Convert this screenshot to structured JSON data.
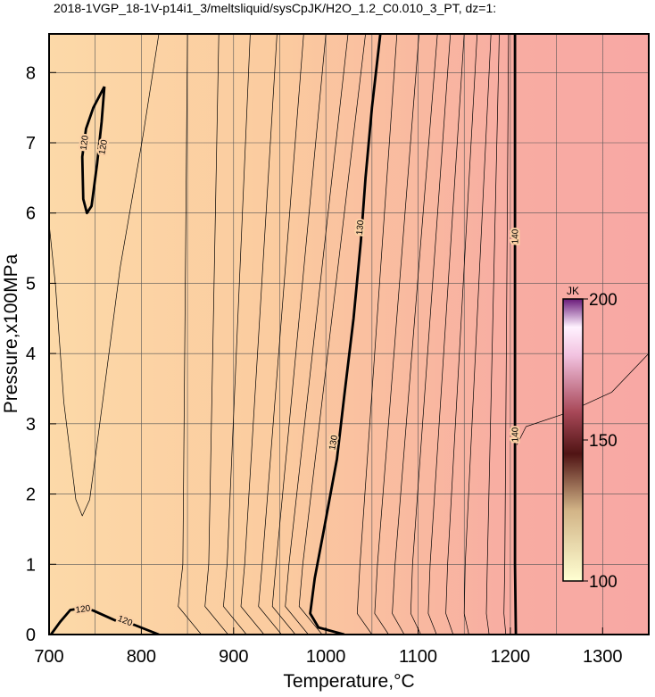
{
  "chart_data": {
    "type": "contour",
    "title": "2018-1VGP_18-1V-p14i1_3/meltsliquid/sysCpJK/H2O_1.2_C0.010_3_PT, dz=1:",
    "x_label": "Temperature,°C",
    "y_label": "Pressure,x100MPa",
    "xlim": [
      700,
      1350
    ],
    "ylim": [
      0,
      8.55
    ],
    "xticks": [
      700,
      800,
      900,
      1000,
      1100,
      1200,
      1300
    ],
    "xminorticks": [
      750,
      850,
      950,
      1050,
      1150,
      1250
    ],
    "yticks": [
      0,
      1,
      2,
      3,
      4,
      5,
      6,
      7,
      8
    ],
    "grid": true,
    "contour_color": "#000000",
    "field": {
      "x": [
        700,
        950,
        1100,
        1200,
        1350
      ],
      "colors": [
        "#fcd9a8",
        "#fbcb9f",
        "#f9b9a0",
        "#f8aca2",
        "#f8a8a4"
      ]
    },
    "colorbar": {
      "label": "JK",
      "lim": [
        100,
        200
      ],
      "ticks": [
        100,
        150,
        200
      ],
      "stops": [
        100,
        125,
        145,
        160,
        180,
        190,
        200
      ],
      "colors": [
        "#ffffd2",
        "#d2b487",
        "#501414",
        "#a84858",
        "#f2c2e0",
        "#fff2ff",
        "#6a1a7a"
      ]
    },
    "contours": [
      {
        "level": 120,
        "x": [
          760,
          757,
          752,
          746,
          741,
          737,
          736,
          740,
          748,
          760
        ],
        "y": [
          7.8,
          7.3,
          6.7,
          6.1,
          6.0,
          6.2,
          6.8,
          7.2,
          7.5,
          7.8
        ]
      },
      {
        "level": 120,
        "x": [
          702,
          712,
          723,
          737,
          748,
          772,
          792,
          819
        ],
        "y": [
          0,
          0.18,
          0.35,
          0.38,
          0.34,
          0.2,
          0.14,
          0
        ]
      },
      {
        "level": 130,
        "x": [
          1059,
          1050,
          1043,
          1038,
          1030,
          1020,
          1012,
          998,
          988,
          983,
          992,
          1020
        ],
        "y": [
          8.55,
          7.5,
          6.5,
          5.6,
          4.5,
          3.4,
          2.5,
          1.5,
          0.8,
          0.3,
          0.1,
          0
        ]
      },
      {
        "level": 140,
        "x": [
          1206,
          1205,
          1205,
          1205
        ],
        "y": [
          0,
          1,
          5,
          8.55
        ]
      },
      {
        "level": 121,
        "x": [
          700,
          707,
          716,
          729,
          736,
          744,
          758,
          777,
          802,
          819
        ],
        "y": [
          5.85,
          4.97,
          3.31,
          1.92,
          1.69,
          1.92,
          3.31,
          5.22,
          7.12,
          8.55
        ]
      },
      {
        "level": 122,
        "x": [
          865,
          840,
          845,
          850
        ],
        "y": [
          0,
          0.4,
          1.0,
          8.55
        ]
      },
      {
        "level": 123,
        "x": [
          894,
          869,
          873,
          884
        ],
        "y": [
          0,
          0.4,
          1.0,
          8.55
        ]
      },
      {
        "level": 124,
        "x": [
          914,
          889,
          893,
          918
        ],
        "y": [
          0,
          0.4,
          1.0,
          8.55
        ]
      },
      {
        "level": 125,
        "x": [
          933,
          908,
          912,
          947
        ],
        "y": [
          0,
          0.4,
          1.0,
          8.55
        ]
      },
      {
        "level": 126,
        "x": [
          952,
          927,
          931,
          976
        ],
        "y": [
          0,
          0.4,
          1.0,
          8.55
        ]
      },
      {
        "level": 127,
        "x": [
          967,
          942,
          946,
          1000
        ],
        "y": [
          0,
          0.4,
          1.0,
          8.55
        ]
      },
      {
        "level": 128,
        "x": [
          981,
          956,
          960,
          1024
        ],
        "y": [
          0,
          0.4,
          1.0,
          8.55
        ]
      },
      {
        "level": 129,
        "x": [
          996,
          971,
          975,
          1043
        ],
        "y": [
          0,
          0.4,
          1.0,
          8.55
        ]
      },
      {
        "level": 131,
        "x": [
          1050,
          1034,
          1037,
          1077
        ],
        "y": [
          0,
          0.3,
          1.0,
          8.55
        ]
      },
      {
        "level": 132,
        "x": [
          1068,
          1053,
          1056,
          1101
        ],
        "y": [
          0,
          0.3,
          1.0,
          8.55
        ]
      },
      {
        "level": 133,
        "x": [
          1085,
          1072,
          1075,
          1121
        ],
        "y": [
          0,
          0.3,
          1.0,
          8.55
        ]
      },
      {
        "level": 134,
        "x": [
          1103,
          1092,
          1094,
          1135
        ],
        "y": [
          0,
          0.3,
          1.0,
          8.55
        ]
      },
      {
        "level": 135,
        "x": [
          1120,
          1111,
          1113,
          1150
        ],
        "y": [
          0,
          0.3,
          1.0,
          8.55
        ]
      },
      {
        "level": 136,
        "x": [
          1138,
          1130,
          1132,
          1164
        ],
        "y": [
          0,
          0.3,
          1.0,
          8.55
        ]
      },
      {
        "level": 137,
        "x": [
          1155,
          1150,
          1151,
          1179
        ],
        "y": [
          0,
          0.3,
          1.0,
          8.55
        ]
      },
      {
        "level": 138,
        "x": [
          1177,
          1174,
          1175,
          1188
        ],
        "y": [
          0,
          0.3,
          1.0,
          8.55
        ]
      },
      {
        "level": 139,
        "x": [
          1195,
          1193,
          1194,
          1198
        ],
        "y": [
          0,
          0.3,
          1.0,
          8.55
        ]
      },
      {
        "level": 141,
        "x": [
          1207,
          1217,
          1260,
          1310,
          1350
        ],
        "y": [
          2.7,
          2.96,
          3.15,
          3.45,
          4.0
        ]
      }
    ]
  }
}
